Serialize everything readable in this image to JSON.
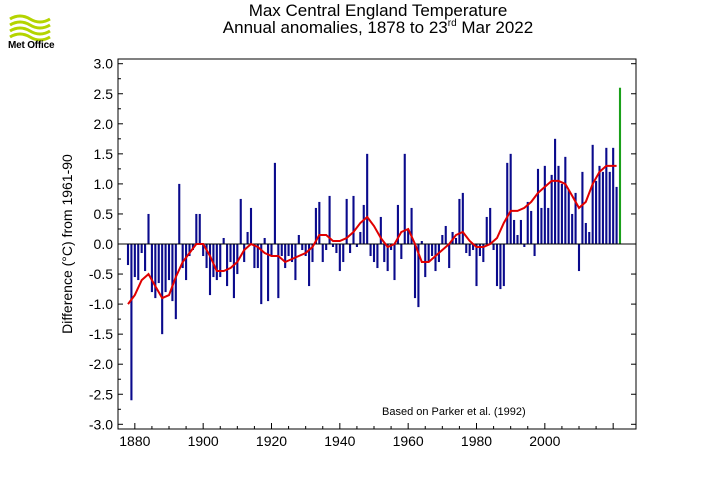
{
  "logo": {
    "text": "Met Office",
    "color": "#b4d400"
  },
  "header": {
    "title": "Max Central England Temperature",
    "subtitle_prefix": "Annual anomalies, 1878 to 23",
    "subtitle_sup": "rd",
    "subtitle_suffix": " Mar 2022"
  },
  "chart_data": {
    "type": "bar",
    "ylabel": "Difference (°C) from 1961-90",
    "annotation": "Based on Parker et al. (1992)",
    "xlim": [
      1875,
      2022
    ],
    "ylim": [
      -3.0,
      3.0
    ],
    "x_ticks": [
      1880,
      1900,
      1920,
      1940,
      1960,
      1980,
      2000
    ],
    "y_ticks": [
      "3.0",
      "2.5",
      "2.0",
      "1.5",
      "1.0",
      "0.5",
      "0.0",
      "-0.5",
      "-1.0",
      "-1.5",
      "-2.0",
      "-2.5",
      "-3.0"
    ],
    "colors": {
      "bars": "#0a0a8c",
      "smoothed": "#e00000",
      "current_year": "#1aa01a",
      "zero_line": "#000000"
    },
    "years": [
      1878,
      1879,
      1880,
      1881,
      1882,
      1883,
      1884,
      1885,
      1886,
      1887,
      1888,
      1889,
      1890,
      1891,
      1892,
      1893,
      1894,
      1895,
      1896,
      1897,
      1898,
      1899,
      1900,
      1901,
      1902,
      1903,
      1904,
      1905,
      1906,
      1907,
      1908,
      1909,
      1910,
      1911,
      1912,
      1913,
      1914,
      1915,
      1916,
      1917,
      1918,
      1919,
      1920,
      1921,
      1922,
      1923,
      1924,
      1925,
      1926,
      1927,
      1928,
      1929,
      1930,
      1931,
      1932,
      1933,
      1934,
      1935,
      1936,
      1937,
      1938,
      1939,
      1940,
      1941,
      1942,
      1943,
      1944,
      1945,
      1946,
      1947,
      1948,
      1949,
      1950,
      1951,
      1952,
      1953,
      1954,
      1955,
      1956,
      1957,
      1958,
      1959,
      1960,
      1961,
      1962,
      1963,
      1964,
      1965,
      1966,
      1967,
      1968,
      1969,
      1970,
      1971,
      1972,
      1973,
      1974,
      1975,
      1976,
      1977,
      1978,
      1979,
      1980,
      1981,
      1982,
      1983,
      1984,
      1985,
      1986,
      1987,
      1988,
      1989,
      1990,
      1991,
      1992,
      1993,
      1994,
      1995,
      1996,
      1997,
      1998,
      1999,
      2000,
      2001,
      2002,
      2003,
      2004,
      2005,
      2006,
      2007,
      2008,
      2009,
      2010,
      2011,
      2012,
      2013,
      2014,
      2015,
      2016,
      2017,
      2018,
      2019,
      2020,
      2021
    ],
    "values": [
      -0.35,
      -2.6,
      -0.55,
      -0.6,
      -0.15,
      -0.45,
      0.5,
      -0.8,
      -0.9,
      -0.65,
      -1.5,
      -0.8,
      -0.6,
      -0.95,
      -1.25,
      1.0,
      -0.4,
      -0.6,
      -0.2,
      -0.1,
      0.5,
      0.5,
      -0.2,
      -0.4,
      -0.85,
      -0.55,
      -0.6,
      -0.55,
      0.1,
      -0.7,
      -0.3,
      -0.9,
      -0.5,
      0.75,
      -0.3,
      0.2,
      0.6,
      -0.4,
      -0.4,
      -1.0,
      0.1,
      -0.95,
      -0.2,
      1.35,
      -0.9,
      -0.2,
      -0.4,
      -0.2,
      -0.3,
      -0.6,
      0.15,
      -0.1,
      -0.2,
      -0.7,
      -0.3,
      0.6,
      0.7,
      -0.3,
      -0.1,
      0.8,
      -0.05,
      -0.15,
      -0.45,
      -0.3,
      0.75,
      -0.15,
      0.8,
      -0.05,
      0.2,
      0.65,
      1.5,
      -0.2,
      -0.3,
      -0.4,
      0.45,
      -0.3,
      -0.45,
      -0.1,
      -0.6,
      0.65,
      -0.25,
      1.5,
      0.25,
      0.6,
      -0.9,
      -1.05,
      0.05,
      -0.55,
      -0.3,
      -0.2,
      -0.45,
      -0.3,
      0.15,
      0.3,
      -0.4,
      0.2,
      0.1,
      0.75,
      0.85,
      -0.15,
      -0.2,
      -0.1,
      -0.7,
      -0.2,
      -0.3,
      0.45,
      0.6,
      -0.1,
      -0.7,
      -0.75,
      -0.7,
      1.35,
      1.5,
      0.4,
      0.15,
      0.4,
      -0.05,
      0.7,
      0.55,
      -0.2,
      1.25,
      0.6,
      1.3,
      0.6,
      1.15,
      1.75,
      1.3,
      1.0,
      1.45,
      0.9,
      0.5,
      0.85,
      -0.45,
      1.2,
      0.35,
      0.2,
      1.65,
      1.05,
      1.3,
      1.2,
      1.6,
      1.2,
      1.6,
      0.95
    ],
    "current_year": {
      "year": 2022,
      "value": 2.6
    },
    "smoothed": [
      [
        1878,
        -1.0
      ],
      [
        1880,
        -0.85
      ],
      [
        1882,
        -0.6
      ],
      [
        1884,
        -0.5
      ],
      [
        1886,
        -0.7
      ],
      [
        1888,
        -0.9
      ],
      [
        1890,
        -0.85
      ],
      [
        1892,
        -0.55
      ],
      [
        1894,
        -0.3
      ],
      [
        1896,
        -0.15
      ],
      [
        1898,
        0.0
      ],
      [
        1900,
        0.0
      ],
      [
        1902,
        -0.2
      ],
      [
        1904,
        -0.45
      ],
      [
        1906,
        -0.45
      ],
      [
        1908,
        -0.4
      ],
      [
        1910,
        -0.3
      ],
      [
        1912,
        -0.1
      ],
      [
        1914,
        0.0
      ],
      [
        1916,
        -0.05
      ],
      [
        1918,
        -0.15
      ],
      [
        1920,
        -0.2
      ],
      [
        1922,
        -0.2
      ],
      [
        1924,
        -0.3
      ],
      [
        1926,
        -0.25
      ],
      [
        1928,
        -0.2
      ],
      [
        1930,
        -0.15
      ],
      [
        1932,
        -0.05
      ],
      [
        1934,
        0.15
      ],
      [
        1936,
        0.15
      ],
      [
        1938,
        0.05
      ],
      [
        1940,
        0.05
      ],
      [
        1942,
        0.1
      ],
      [
        1944,
        0.2
      ],
      [
        1946,
        0.35
      ],
      [
        1948,
        0.45
      ],
      [
        1950,
        0.3
      ],
      [
        1952,
        0.1
      ],
      [
        1954,
        -0.05
      ],
      [
        1956,
        0.0
      ],
      [
        1958,
        0.2
      ],
      [
        1960,
        0.25
      ],
      [
        1962,
        0.0
      ],
      [
        1964,
        -0.3
      ],
      [
        1966,
        -0.3
      ],
      [
        1968,
        -0.2
      ],
      [
        1970,
        -0.1
      ],
      [
        1972,
        0.0
      ],
      [
        1974,
        0.15
      ],
      [
        1976,
        0.2
      ],
      [
        1978,
        0.05
      ],
      [
        1980,
        -0.05
      ],
      [
        1982,
        -0.05
      ],
      [
        1984,
        0.0
      ],
      [
        1986,
        0.1
      ],
      [
        1988,
        0.35
      ],
      [
        1990,
        0.55
      ],
      [
        1992,
        0.55
      ],
      [
        1994,
        0.6
      ],
      [
        1996,
        0.7
      ],
      [
        1998,
        0.85
      ],
      [
        2000,
        0.95
      ],
      [
        2002,
        1.05
      ],
      [
        2004,
        1.05
      ],
      [
        2006,
        1.0
      ],
      [
        2008,
        0.8
      ],
      [
        2010,
        0.6
      ],
      [
        2012,
        0.7
      ],
      [
        2014,
        1.0
      ],
      [
        2016,
        1.2
      ],
      [
        2018,
        1.3
      ],
      [
        2020,
        1.3
      ],
      [
        2021,
        1.3
      ]
    ]
  }
}
